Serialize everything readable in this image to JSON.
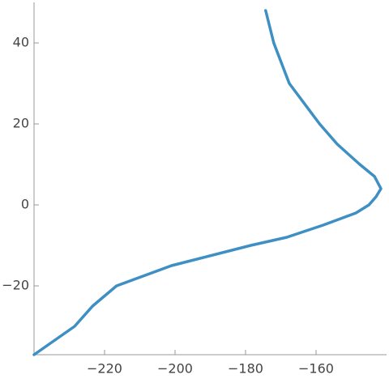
{
  "chart_data": {
    "type": "line",
    "x": [
      -240,
      -228.5,
      -223.4,
      -216.6,
      -201,
      -178.5,
      -168.3,
      -158,
      -148.7,
      -145,
      -143,
      -141.6,
      -143.4,
      -147.6,
      -154,
      -159,
      -167.6,
      -172,
      -174.3
    ],
    "series": [
      {
        "color": "#3e8fc4",
        "values": [
          -37,
          -30,
          -25,
          -20,
          -15,
          -10,
          -8,
          -5,
          -2,
          0,
          2,
          4,
          7,
          10,
          15,
          20,
          30,
          40,
          48
        ]
      }
    ],
    "xlim": [
      -240,
      -140
    ],
    "ylim": [
      -37,
      50
    ],
    "xticks": [
      {
        "value": -220,
        "label": "−220"
      },
      {
        "value": -200,
        "label": "−200"
      },
      {
        "value": -180,
        "label": "−180"
      },
      {
        "value": -160,
        "label": "−160"
      }
    ],
    "yticks": [
      {
        "value": -20,
        "label": "−20"
      },
      0,
      20,
      40
    ]
  }
}
